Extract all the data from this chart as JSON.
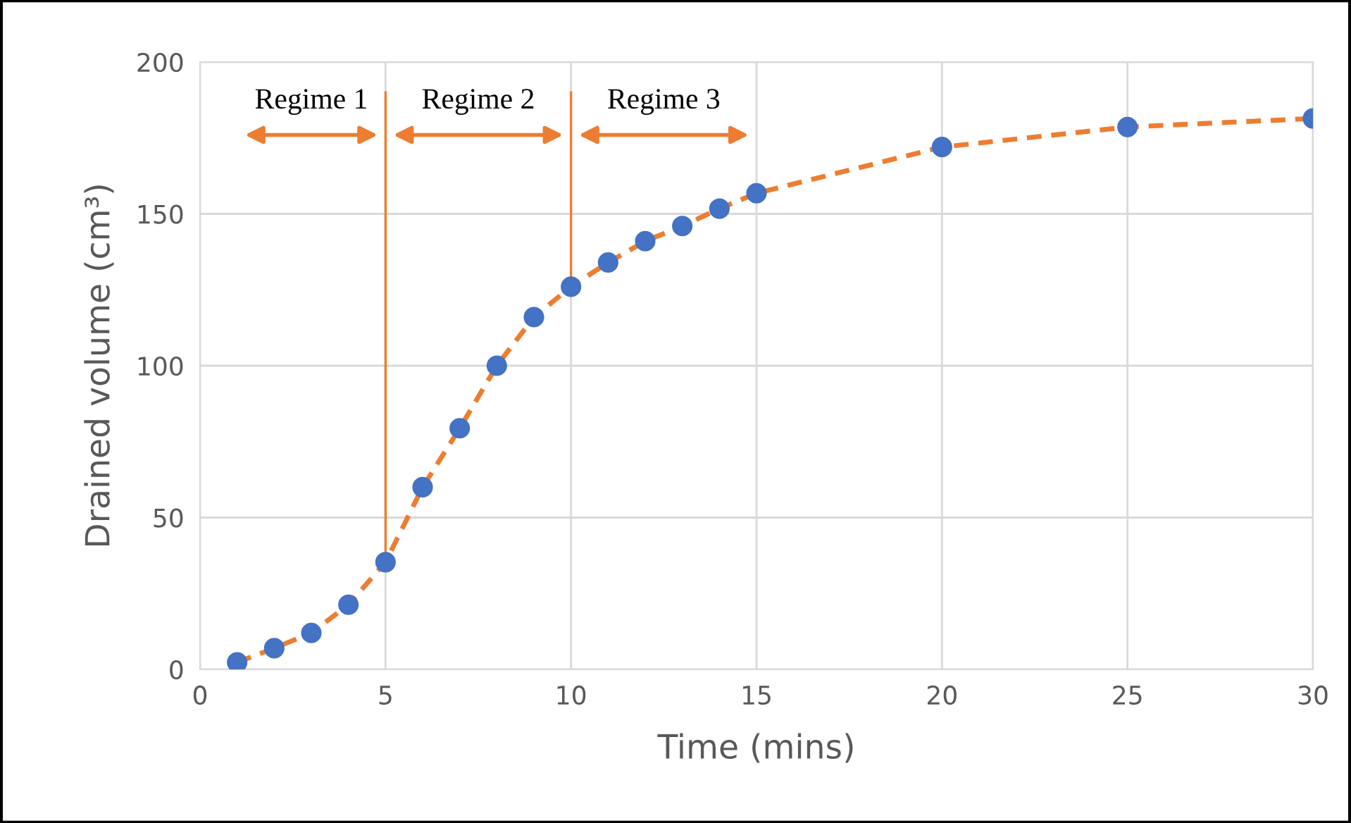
{
  "chart_data": {
    "type": "line",
    "xlabel": "Time (mins)",
    "ylabel": "Drained volume (cm³)",
    "x": [
      1,
      2,
      3,
      4,
      5,
      6,
      7,
      8,
      9,
      10,
      11,
      12,
      13,
      14,
      15,
      20,
      25,
      30
    ],
    "series": [
      {
        "color": "#ed7d31",
        "line_style": "dashed",
        "values": [
          2.3,
          7,
          12,
          21.3,
          35.3,
          60,
          79.4,
          100,
          116,
          126,
          134,
          141,
          146,
          151.7,
          156.8,
          172,
          178.6,
          181.4
        ]
      },
      {
        "type": "scatter",
        "color": "#4472c4",
        "marker": "circle",
        "values": [
          2.3,
          7,
          12,
          21.3,
          35.3,
          60,
          79.4,
          100,
          116,
          126,
          134,
          141,
          146,
          151.7,
          156.8,
          172,
          178.6,
          181.4
        ]
      }
    ],
    "ref_lines": [
      {
        "axis": "x",
        "value": 5,
        "color": "#ed7d31"
      },
      {
        "axis": "x",
        "value": 10,
        "color": "#ed7d31"
      }
    ],
    "annotations": [
      "Regime 1",
      "Regime 2",
      "Regime 3"
    ],
    "xlim": [
      0,
      30
    ],
    "xticks": [
      0,
      5,
      10,
      15,
      20,
      25,
      30
    ],
    "ylim": [
      0,
      200
    ],
    "yticks": [
      0,
      50,
      100,
      150,
      200
    ],
    "grid": true
  }
}
